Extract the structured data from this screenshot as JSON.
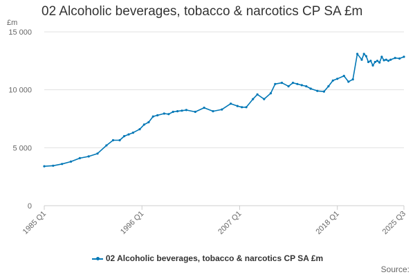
{
  "chart_data": {
    "type": "line",
    "title": "02 Alcoholic beverages, tobacco & narcotics CP SA £m",
    "ylabel_unit": "£m",
    "xlabel": "",
    "ylim": [
      0,
      15000
    ],
    "y_ticks": [
      {
        "value": 0,
        "label": "0"
      },
      {
        "value": 5000,
        "label": "5 000"
      },
      {
        "value": 10000,
        "label": "10 000"
      },
      {
        "value": 15000,
        "label": "15 000"
      }
    ],
    "x_range": [
      1985.0,
      2025.5
    ],
    "x_ticks": [
      {
        "value": 1985.0,
        "label": "1985 Q1"
      },
      {
        "value": 1996.0,
        "label": "1996 Q1"
      },
      {
        "value": 2007.0,
        "label": "2007 Q1"
      },
      {
        "value": 2018.0,
        "label": "2018 Q1"
      },
      {
        "value": 2025.5,
        "label": "2025 Q3"
      }
    ],
    "grid": true,
    "legend_position": "bottom",
    "series": [
      {
        "name": "02 Alcoholic beverages, tobacco & narcotics CP SA £m",
        "color": "#0077b6",
        "x": [
          1985.0,
          1986.0,
          1987.0,
          1988.0,
          1989.0,
          1990.0,
          1991.0,
          1992.0,
          1992.75,
          1993.5,
          1994.0,
          1994.5,
          1995.0,
          1995.75,
          1996.25,
          1996.75,
          1997.25,
          1997.75,
          1998.5,
          1999.0,
          1999.5,
          2000.0,
          2000.5,
          2001.0,
          2002.0,
          2003.0,
          2004.0,
          2005.0,
          2006.0,
          2006.75,
          2007.25,
          2007.75,
          2008.5,
          2009.0,
          2009.75,
          2010.5,
          2011.0,
          2011.75,
          2012.5,
          2013.0,
          2013.5,
          2014.0,
          2014.5,
          2015.0,
          2015.75,
          2016.5,
          2017.0,
          2017.5,
          2018.0,
          2018.75,
          2019.25,
          2019.75,
          2020.25,
          2020.75,
          2021.0,
          2021.25,
          2021.5,
          2021.75,
          2022.0,
          2022.25,
          2022.5,
          2022.75,
          2023.0,
          2023.25,
          2023.5,
          2023.75,
          2024.0,
          2024.5,
          2025.0,
          2025.5
        ],
        "values": [
          3400,
          3450,
          3600,
          3800,
          4100,
          4250,
          4500,
          5200,
          5650,
          5650,
          6000,
          6150,
          6300,
          6600,
          7000,
          7200,
          7700,
          7800,
          7950,
          7900,
          8100,
          8150,
          8200,
          8250,
          8100,
          8450,
          8150,
          8300,
          8800,
          8600,
          8500,
          8500,
          9200,
          9600,
          9200,
          9700,
          10500,
          10600,
          10300,
          10600,
          10500,
          10400,
          10300,
          10100,
          9900,
          9850,
          10300,
          10800,
          10950,
          11200,
          10700,
          10900,
          13100,
          12600,
          13100,
          12900,
          12400,
          12500,
          12100,
          12400,
          12500,
          12350,
          12850,
          12550,
          12600,
          12500,
          12600,
          12750,
          12700,
          12850
        ]
      }
    ]
  },
  "legend": {
    "label": "02 Alcoholic beverages, tobacco & narcotics CP SA £m"
  },
  "source": {
    "label": "Source:"
  }
}
